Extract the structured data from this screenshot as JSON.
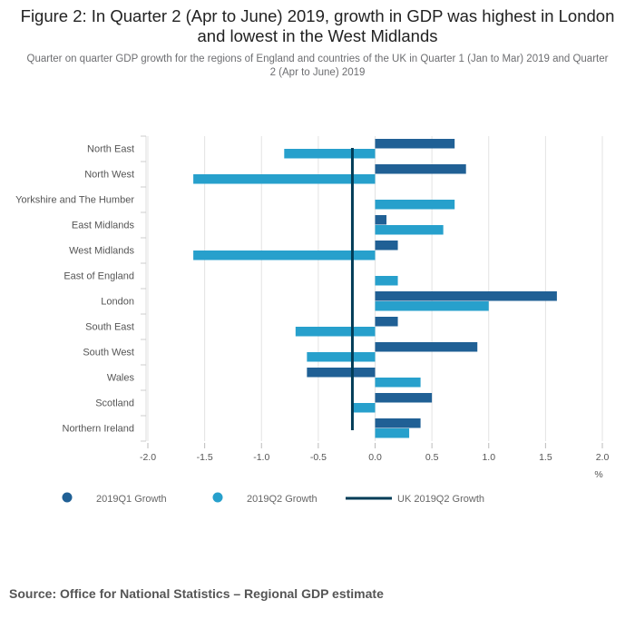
{
  "title": "Figure 2: In Quarter 2 (Apr to June) 2019, growth in GDP was highest in London and lowest in the West Midlands",
  "subtitle": "Quarter on quarter GDP growth for the regions of England and countries of the UK in Quarter 1 (Jan to Mar) 2019 and Quarter 2 (Apr to June) 2019",
  "source": "Source: Office for National Statistics – Regional GDP estimate",
  "chart_data": {
    "type": "bar",
    "orientation": "horizontal",
    "categories": [
      "North East",
      "North West",
      "Yorkshire and The Humber",
      "East Midlands",
      "West Midlands",
      "East of England",
      "London",
      "South East",
      "South West",
      "Wales",
      "Scotland",
      "Northern Ireland"
    ],
    "series": [
      {
        "name": "2019Q1 Growth",
        "color": "#206095",
        "values": [
          0.7,
          0.8,
          0.0,
          0.1,
          0.2,
          0.0,
          1.6,
          0.2,
          0.9,
          -0.6,
          0.5,
          0.4
        ]
      },
      {
        "name": "2019Q2 Growth",
        "color": "#27a0cc",
        "values": [
          -0.8,
          -1.6,
          0.7,
          0.6,
          -1.6,
          0.2,
          1.0,
          -0.7,
          -0.6,
          0.4,
          -0.2,
          0.3
        ]
      }
    ],
    "reference_line": {
      "name": "UK 2019Q2 Growth",
      "value": -0.2,
      "color": "#003c57"
    },
    "xlim": [
      -2.0,
      2.0
    ],
    "xticks": [
      "-2.0",
      "-1.5",
      "-1.0",
      "-0.5",
      "0.0",
      "0.5",
      "1.0",
      "1.5",
      "2.0"
    ],
    "xlabel": "%",
    "legend": "bottom-left",
    "grid": true
  }
}
